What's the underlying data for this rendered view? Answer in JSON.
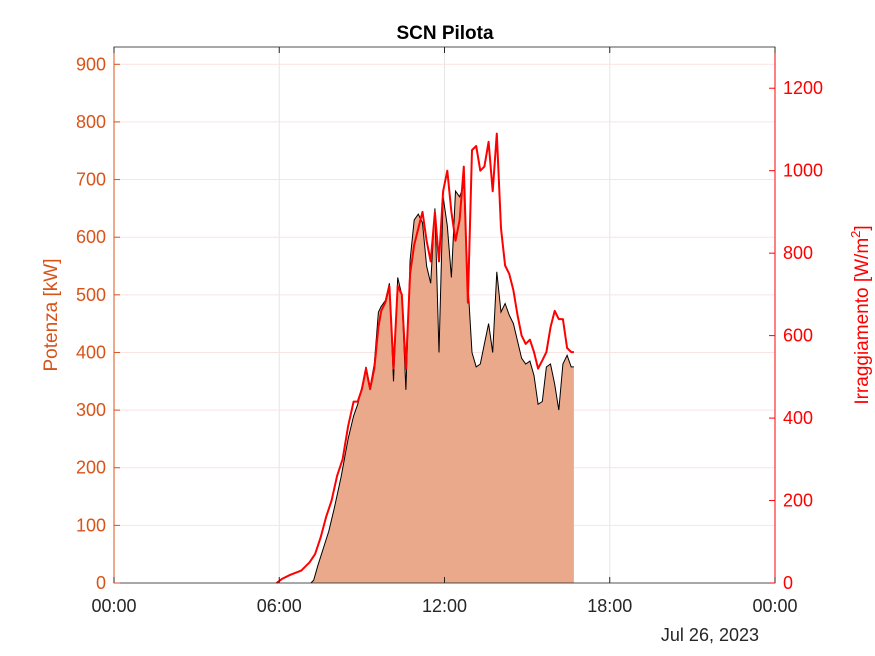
{
  "chart_data": {
    "type": "area",
    "title": "SCN Pilota",
    "ylabel_left": "Potenza [kW]",
    "ylabel_right_main": "Irraggiamento [W/m",
    "ylabel_right_sup": "2",
    "ylabel_right_end": "]",
    "date_label": "Jul 26, 2023",
    "x_range_hours": [
      0,
      24
    ],
    "y_left_range": [
      0,
      930
    ],
    "y_right_range": [
      0,
      1300
    ],
    "x_ticks": [
      {
        "h": 0,
        "label": "00:00"
      },
      {
        "h": 6,
        "label": "06:00"
      },
      {
        "h": 12,
        "label": "12:00"
      },
      {
        "h": 18,
        "label": "18:00"
      },
      {
        "h": 24,
        "label": "00:00"
      }
    ],
    "y_left_ticks": [
      0,
      100,
      200,
      300,
      400,
      500,
      600,
      700,
      800,
      900
    ],
    "y_right_ticks": [
      0,
      200,
      400,
      600,
      800,
      1000,
      1200
    ],
    "grid": true,
    "colors": {
      "left_axis": "#d95319",
      "right_axis": "#ff0000",
      "area_fill": "#eba98b",
      "area_edge": "#000000",
      "irradiance_line": "#ff0000"
    },
    "series": [
      {
        "axis": "left",
        "style": "area",
        "x": [
          7.15,
          7.25,
          7.4,
          7.6,
          7.8,
          8.0,
          8.25,
          8.5,
          8.7,
          8.85,
          9.0,
          9.15,
          9.3,
          9.45,
          9.6,
          9.7,
          9.85,
          10.0,
          10.15,
          10.3,
          10.45,
          10.6,
          10.75,
          10.9,
          11.05,
          11.2,
          11.35,
          11.5,
          11.65,
          11.8,
          11.95,
          12.1,
          12.25,
          12.4,
          12.55,
          12.7,
          12.85,
          13.0,
          13.15,
          13.3,
          13.45,
          13.6,
          13.75,
          13.9,
          14.05,
          14.2,
          14.35,
          14.5,
          14.65,
          14.8,
          14.95,
          15.1,
          15.25,
          15.4,
          15.55,
          15.7,
          15.85,
          16.0,
          16.15,
          16.3,
          16.45,
          16.6,
          16.7
        ],
        "values": [
          0,
          5,
          30,
          60,
          90,
          130,
          185,
          250,
          290,
          310,
          340,
          375,
          340,
          380,
          470,
          480,
          490,
          520,
          350,
          530,
          500,
          335,
          560,
          630,
          640,
          625,
          550,
          520,
          650,
          400,
          670,
          620,
          530,
          680,
          670,
          690,
          520,
          400,
          375,
          380,
          415,
          450,
          400,
          540,
          470,
          485,
          465,
          450,
          420,
          390,
          380,
          385,
          360,
          310,
          315,
          375,
          380,
          345,
          300,
          380,
          395,
          375,
          375
        ]
      },
      {
        "axis": "right",
        "style": "line",
        "x": [
          5.9,
          6.1,
          6.4,
          6.8,
          7.1,
          7.3,
          7.5,
          7.7,
          7.9,
          8.1,
          8.3,
          8.5,
          8.7,
          8.85,
          9.0,
          9.15,
          9.3,
          9.45,
          9.6,
          9.7,
          9.85,
          10.0,
          10.15,
          10.3,
          10.45,
          10.6,
          10.75,
          10.9,
          11.05,
          11.2,
          11.35,
          11.5,
          11.65,
          11.8,
          11.95,
          12.1,
          12.25,
          12.4,
          12.55,
          12.7,
          12.85,
          13.0,
          13.15,
          13.3,
          13.45,
          13.6,
          13.75,
          13.9,
          14.05,
          14.2,
          14.35,
          14.5,
          14.65,
          14.8,
          14.95,
          15.1,
          15.25,
          15.4,
          15.55,
          15.7,
          15.85,
          16.0,
          16.15,
          16.3,
          16.45,
          16.6,
          16.7
        ],
        "values": [
          0,
          10,
          20,
          30,
          50,
          70,
          110,
          160,
          200,
          260,
          300,
          380,
          440,
          440,
          470,
          520,
          470,
          520,
          620,
          660,
          680,
          720,
          520,
          720,
          700,
          520,
          750,
          820,
          860,
          900,
          830,
          780,
          900,
          780,
          950,
          1000,
          900,
          830,
          880,
          1010,
          680,
          1050,
          1060,
          1000,
          1010,
          1070,
          950,
          1090,
          860,
          770,
          750,
          710,
          650,
          600,
          580,
          590,
          560,
          520,
          540,
          560,
          620,
          660,
          640,
          640,
          570,
          560,
          560
        ]
      }
    ]
  }
}
